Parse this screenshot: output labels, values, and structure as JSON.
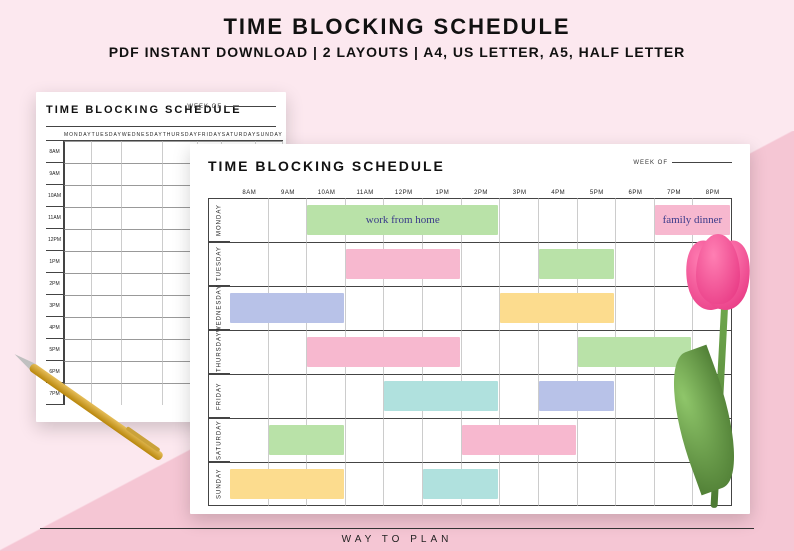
{
  "header": {
    "title": "TIME BLOCKING SCHEDULE",
    "subtitle": "PDF INSTANT DOWNLOAD | 2 LAYOUTS | A4, US LETTER, A5, HALF LETTER"
  },
  "footer": "WAY TO PLAN",
  "colors": {
    "page_bg": "#fce8ef",
    "tri_bg": "#f5c6d4",
    "sheet_bg": "#ffffff",
    "grid_line": "#444444",
    "block_green": "#b9e2a8",
    "block_pink": "#f7b8cf",
    "block_blue": "#b8c2e8",
    "block_yellow": "#fcdc8e",
    "block_teal": "#b0e1de",
    "text_script": "#4a4aa8"
  },
  "sheet_back": {
    "title": "TIME BLOCKING SCHEDULE",
    "weekof_label": "WEEK OF",
    "days": [
      "MONDAY",
      "TUESDAY",
      "WEDNESDAY",
      "THURSDAY",
      "FRIDAY",
      "SATURDAY",
      "SUNDAY"
    ],
    "hours": [
      "8AM",
      "9AM",
      "10AM",
      "11AM",
      "12PM",
      "1PM",
      "2PM",
      "3PM",
      "4PM",
      "5PM",
      "6PM",
      "7PM"
    ]
  },
  "sheet_front": {
    "title": "TIME BLOCKING SCHEDULE",
    "weekof_label": "WEEK OF",
    "hours": [
      "8AM",
      "9AM",
      "10AM",
      "11AM",
      "12PM",
      "1PM",
      "2PM",
      "3PM",
      "4PM",
      "5PM",
      "6PM",
      "7PM",
      "8PM"
    ],
    "days": [
      "MONDAY",
      "TUESDAY",
      "WEDNESDAY",
      "THURSDAY",
      "FRIDAY",
      "SATURDAY",
      "SUNDAY"
    ],
    "col_width_pct": 7.538,
    "day_col_pct": 2.0,
    "blocks": [
      {
        "row": 0,
        "start": 2,
        "span": 5,
        "color": "#b9e2a8",
        "label": "work from home"
      },
      {
        "row": 0,
        "start": 11,
        "span": 2,
        "color": "#f7b8cf",
        "label": "family dinner"
      },
      {
        "row": 1,
        "start": 3,
        "span": 3,
        "color": "#f7b8cf",
        "label": ""
      },
      {
        "row": 1,
        "start": 8,
        "span": 2,
        "color": "#b9e2a8",
        "label": ""
      },
      {
        "row": 2,
        "start": 0,
        "span": 3,
        "color": "#b8c2e8",
        "label": ""
      },
      {
        "row": 2,
        "start": 7,
        "span": 3,
        "color": "#fcdc8e",
        "label": ""
      },
      {
        "row": 3,
        "start": 2,
        "span": 4,
        "color": "#f7b8cf",
        "label": ""
      },
      {
        "row": 3,
        "start": 9,
        "span": 3,
        "color": "#b9e2a8",
        "label": ""
      },
      {
        "row": 4,
        "start": 4,
        "span": 3,
        "color": "#b0e1de",
        "label": ""
      },
      {
        "row": 4,
        "start": 8,
        "span": 2,
        "color": "#b8c2e8",
        "label": ""
      },
      {
        "row": 5,
        "start": 1,
        "span": 2,
        "color": "#b9e2a8",
        "label": ""
      },
      {
        "row": 5,
        "start": 6,
        "span": 3,
        "color": "#f7b8cf",
        "label": ""
      },
      {
        "row": 6,
        "start": 0,
        "span": 3,
        "color": "#fcdc8e",
        "label": ""
      },
      {
        "row": 6,
        "start": 5,
        "span": 2,
        "color": "#b0e1de",
        "label": ""
      }
    ]
  }
}
